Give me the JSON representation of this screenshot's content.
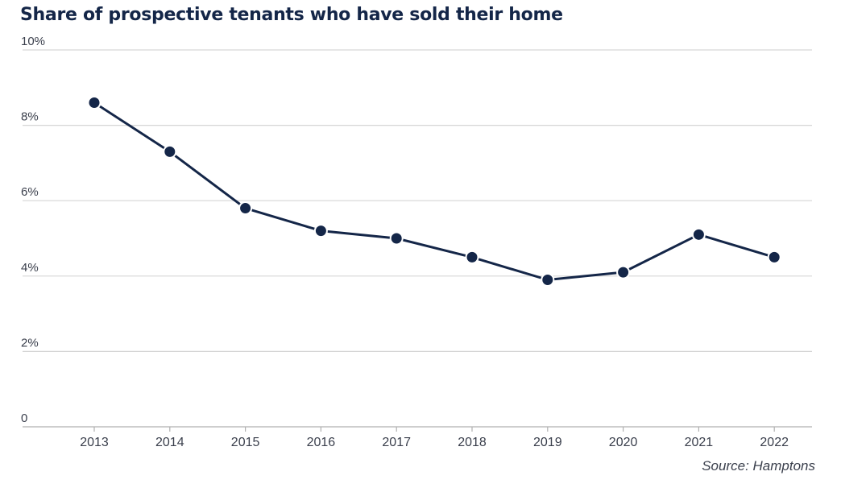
{
  "chart_data": {
    "type": "line",
    "title": "Share of prospective tenants who have sold their home",
    "xlabel": "",
    "ylabel": "",
    "x": [
      "2013",
      "2014",
      "2015",
      "2016",
      "2017",
      "2018",
      "2019",
      "2020",
      "2021",
      "2022"
    ],
    "series": [
      {
        "values": [
          8.6,
          7.3,
          5.8,
          5.2,
          5.0,
          4.5,
          3.9,
          4.1,
          5.1,
          4.5
        ]
      }
    ],
    "ylim": [
      0,
      10
    ],
    "y_ticks": [
      {
        "value": 0,
        "label": "0"
      },
      {
        "value": 2,
        "label": "2%"
      },
      {
        "value": 4,
        "label": "4%"
      },
      {
        "value": 6,
        "label": "6%"
      },
      {
        "value": 8,
        "label": "8%"
      },
      {
        "value": 10,
        "label": "10%"
      }
    ],
    "grid": true,
    "legend": "none",
    "colors": {
      "line": "#142648",
      "marker_fill": "#142648",
      "marker_stroke": "#ffffff",
      "grid": "#d6d6d6",
      "axis": "#b0b0b0"
    },
    "source": "Source: Hamptons"
  }
}
